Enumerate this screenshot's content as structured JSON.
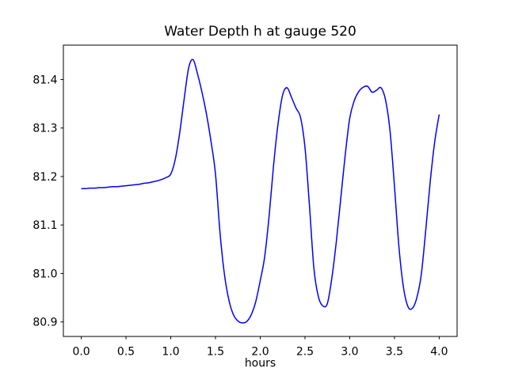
{
  "figure": {
    "background_color": "#ffffff",
    "axes_edge_color": "#000000",
    "tick_color": "#000000"
  },
  "chart_data": {
    "type": "line",
    "title": "Water Depth h at gauge 520",
    "xlabel": "hours",
    "ylabel": "",
    "grid": false,
    "legend": false,
    "xlim": [
      -0.2,
      4.2
    ],
    "ylim": [
      80.87,
      81.471
    ],
    "xticks": [
      0.0,
      0.5,
      1.0,
      1.5,
      2.0,
      2.5,
      3.0,
      3.5,
      4.0
    ],
    "xtick_labels": [
      "0.0",
      "0.5",
      "1.0",
      "1.5",
      "2.0",
      "2.5",
      "3.0",
      "3.5",
      "4.0"
    ],
    "yticks": [
      80.9,
      81.0,
      81.1,
      81.2,
      81.3,
      81.4
    ],
    "ytick_labels": [
      "80.9",
      "81.0",
      "81.1",
      "81.2",
      "81.3",
      "81.4"
    ],
    "series": [
      {
        "name": "water-depth-h",
        "color": "#0000ff",
        "line_width": 1.5,
        "x": [
          0.0,
          0.05,
          0.1,
          0.15,
          0.2,
          0.25,
          0.3,
          0.35,
          0.4,
          0.45,
          0.5,
          0.55,
          0.6,
          0.65,
          0.7,
          0.75,
          0.8,
          0.85,
          0.9,
          0.95,
          1.0,
          1.05,
          1.1,
          1.15,
          1.2,
          1.25,
          1.3,
          1.35,
          1.4,
          1.45,
          1.5,
          1.55,
          1.6,
          1.65,
          1.7,
          1.75,
          1.8,
          1.85,
          1.9,
          1.95,
          2.0,
          2.05,
          2.1,
          2.15,
          2.2,
          2.25,
          2.3,
          2.35,
          2.4,
          2.45,
          2.5,
          2.55,
          2.6,
          2.65,
          2.7,
          2.75,
          2.8,
          2.85,
          2.9,
          2.95,
          3.0,
          3.05,
          3.1,
          3.15,
          3.2,
          3.25,
          3.3,
          3.35,
          3.4,
          3.45,
          3.5,
          3.55,
          3.6,
          3.65,
          3.7,
          3.75,
          3.8,
          3.85,
          3.9,
          3.95,
          4.0
        ],
        "y": [
          81.175,
          81.175,
          81.176,
          81.176,
          81.177,
          81.177,
          81.178,
          81.179,
          81.179,
          81.18,
          81.181,
          81.182,
          81.183,
          81.184,
          81.186,
          81.187,
          81.189,
          81.191,
          81.194,
          81.198,
          81.205,
          81.235,
          81.29,
          81.36,
          81.424,
          81.441,
          81.411,
          81.373,
          81.328,
          81.272,
          81.205,
          81.085,
          80.998,
          80.945,
          80.915,
          80.902,
          80.898,
          80.901,
          80.915,
          80.942,
          80.985,
          81.035,
          81.12,
          81.225,
          81.31,
          81.368,
          81.383,
          81.363,
          81.341,
          81.322,
          81.26,
          81.14,
          81.01,
          80.952,
          80.933,
          80.938,
          80.99,
          81.065,
          81.155,
          81.245,
          81.32,
          81.356,
          81.375,
          81.384,
          81.386,
          81.374,
          81.378,
          81.383,
          81.358,
          81.295,
          81.18,
          81.055,
          80.972,
          80.932,
          80.928,
          80.95,
          80.998,
          81.09,
          81.19,
          81.272,
          81.328
        ]
      }
    ]
  }
}
